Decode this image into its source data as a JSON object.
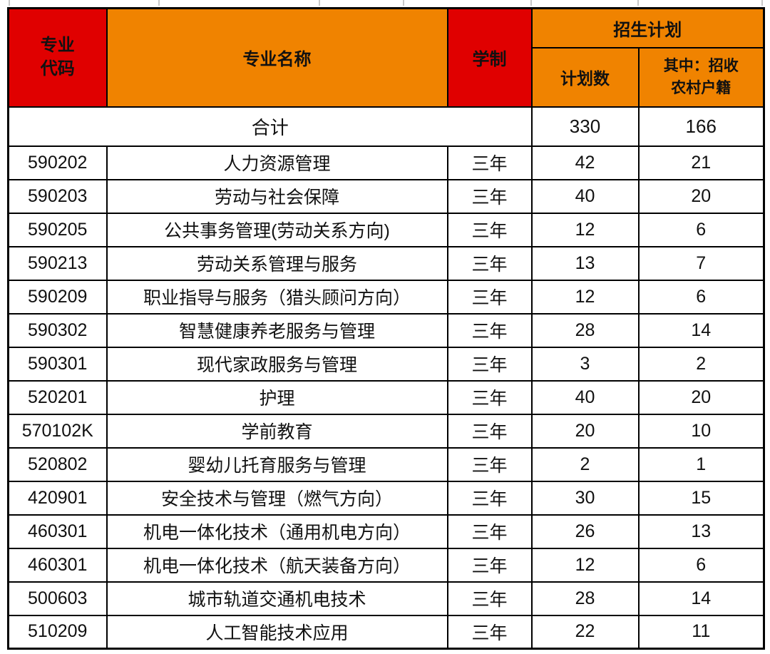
{
  "table": {
    "header": {
      "col_code": {
        "line1": "专业",
        "line2": "代码"
      },
      "col_name": "专业名称",
      "col_duration": "学制",
      "group_plan": "招生计划",
      "sub_plan_count": "计划数",
      "sub_rural": {
        "line1": "其中：招收",
        "line2": "农村户籍"
      }
    },
    "total_row": {
      "label": "合计",
      "plan": "330",
      "rural": "166"
    },
    "rows": [
      {
        "code": "590202",
        "name": "人力资源管理",
        "duration": "三年",
        "plan": "42",
        "rural": "21"
      },
      {
        "code": "590203",
        "name": "劳动与社会保障",
        "duration": "三年",
        "plan": "40",
        "rural": "20"
      },
      {
        "code": "590205",
        "name": "公共事务管理(劳动关系方向)",
        "duration": "三年",
        "plan": "12",
        "rural": "6"
      },
      {
        "code": "590213",
        "name": "劳动关系管理与服务",
        "duration": "三年",
        "plan": "13",
        "rural": "7"
      },
      {
        "code": "590209",
        "name": "职业指导与服务（猎头顾问方向）",
        "duration": "三年",
        "plan": "12",
        "rural": "6"
      },
      {
        "code": "590302",
        "name": "智慧健康养老服务与管理",
        "duration": "三年",
        "plan": "28",
        "rural": "14"
      },
      {
        "code": "590301",
        "name": "现代家政服务与管理",
        "duration": "三年",
        "plan": "3",
        "rural": "2"
      },
      {
        "code": "520201",
        "name": "护理",
        "duration": "三年",
        "plan": "40",
        "rural": "20"
      },
      {
        "code": "570102K",
        "name": "学前教育",
        "duration": "三年",
        "plan": "20",
        "rural": "10"
      },
      {
        "code": "520802",
        "name": "婴幼儿托育服务与管理",
        "duration": "三年",
        "plan": "2",
        "rural": "1"
      },
      {
        "code": "420901",
        "name": "安全技术与管理（燃气方向）",
        "duration": "三年",
        "plan": "30",
        "rural": "15"
      },
      {
        "code": "460301",
        "name": "机电一体化技术（通用机电方向）",
        "duration": "三年",
        "plan": "26",
        "rural": "13"
      },
      {
        "code": "460301",
        "name": "机电一体化技术（航天装备方向）",
        "duration": "三年",
        "plan": "12",
        "rural": "6"
      },
      {
        "code": "500603",
        "name": "城市轨道交通机电技术",
        "duration": "三年",
        "plan": "28",
        "rural": "14"
      },
      {
        "code": "510209",
        "name": "人工智能技术应用",
        "duration": "三年",
        "plan": "22",
        "rural": "11"
      }
    ],
    "colors": {
      "header_red": "#e00000",
      "header_orange": "#f08300",
      "border": "#000000",
      "body_text": "#111111",
      "header_text": "#ffffff"
    }
  }
}
